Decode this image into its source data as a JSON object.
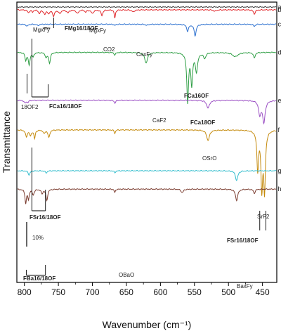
{
  "chart_data": {
    "type": "line",
    "xlabel": "Wavenumber (cm⁻¹)",
    "ylabel": "Transmittance",
    "xlim": [
      810,
      430
    ],
    "x_reversed": true,
    "xticks": [
      800,
      750,
      700,
      650,
      600,
      550,
      500,
      450
    ],
    "y_ticks_shown": false,
    "grid": false,
    "scale_bar": {
      "label": "10%",
      "value_percent": 10
    },
    "series": [
      {
        "name": "a",
        "color": "#3a3a3a",
        "baseline": 0.0,
        "bands": []
      },
      {
        "name": "b",
        "color": "#e0262a",
        "baseline": -4.0,
        "bands": [
          {
            "x": 794,
            "depth": 4,
            "width": 1.5
          },
          {
            "x": 788,
            "depth": 3,
            "width": 1.2
          },
          {
            "x": 778,
            "depth": 5,
            "width": 1.5
          },
          {
            "x": 770,
            "depth": 6,
            "width": 1.8
          },
          {
            "x": 764,
            "depth": 5,
            "width": 1.5
          },
          {
            "x": 757,
            "depth": 9,
            "width": 1.5
          },
          {
            "x": 748,
            "depth": 5,
            "width": 2
          },
          {
            "x": 736,
            "depth": 4,
            "width": 2
          },
          {
            "x": 722,
            "depth": 5,
            "width": 2
          },
          {
            "x": 710,
            "depth": 3,
            "width": 1.5
          },
          {
            "x": 700,
            "depth": 5,
            "width": 2
          },
          {
            "x": 686,
            "depth": 8,
            "width": 1.5
          },
          {
            "x": 667,
            "depth": 12,
            "width": 1.0
          },
          {
            "x": 640,
            "depth": 3,
            "width": 2
          },
          {
            "x": 520,
            "depth": 2,
            "width": 2
          },
          {
            "x": 462,
            "depth": 6,
            "width": 1.5
          }
        ]
      },
      {
        "name": "c",
        "color": "#2a6fcf",
        "baseline": -24.5,
        "bands": [
          {
            "x": 796,
            "depth": 3,
            "width": 1.5
          },
          {
            "x": 780,
            "depth": 2,
            "width": 1.5
          },
          {
            "x": 667,
            "depth": 2,
            "width": 1.0
          },
          {
            "x": 620,
            "depth": 1.5,
            "width": 2
          },
          {
            "x": 560,
            "depth": 10,
            "width": 1.6
          },
          {
            "x": 549,
            "depth": 16,
            "width": 1.8
          },
          {
            "x": 462,
            "depth": 3,
            "width": 1.5
          }
        ]
      },
      {
        "name": "d",
        "color": "#2e9e44",
        "baseline": -64.5,
        "bands": [
          {
            "x": 798,
            "depth": 11,
            "width": 1.2
          },
          {
            "x": 793,
            "depth": 18,
            "width": 1.5
          },
          {
            "x": 787,
            "depth": 6,
            "width": 1.2
          },
          {
            "x": 768,
            "depth": 7,
            "width": 1.5
          },
          {
            "x": 763,
            "depth": 15,
            "width": 1.5
          },
          {
            "x": 667,
            "depth": 4,
            "width": 1.2
          },
          {
            "x": 621,
            "depth": 15,
            "width": 2.5
          },
          {
            "x": 560,
            "depth": 70,
            "width": 1.5
          },
          {
            "x": 554,
            "depth": 44,
            "width": 1.5
          },
          {
            "x": 547,
            "depth": 26,
            "width": 2
          },
          {
            "x": 535,
            "depth": 8,
            "width": 2
          },
          {
            "x": 490,
            "depth": 6,
            "width": 5
          },
          {
            "x": 462,
            "depth": 8,
            "width": 1.5
          }
        ]
      },
      {
        "name": "e",
        "color": "#9b4fc4",
        "baseline": -132.8,
        "bands": [
          {
            "x": 799,
            "depth": 4,
            "width": 1.5
          },
          {
            "x": 795,
            "depth": 3,
            "width": 1.2
          },
          {
            "x": 667,
            "depth": 4,
            "width": 1.2
          },
          {
            "x": 530,
            "depth": 11,
            "width": 2.5
          },
          {
            "x": 454,
            "depth": 20,
            "width": 2
          },
          {
            "x": 448,
            "depth": 31,
            "width": 2.2
          }
        ]
      },
      {
        "name": "f",
        "color": "#c48a0c",
        "baseline": -174.9,
        "bands": [
          {
            "x": 797,
            "depth": 10,
            "width": 1.5
          },
          {
            "x": 791,
            "depth": 8,
            "width": 1.5
          },
          {
            "x": 785,
            "depth": 12,
            "width": 1.2
          },
          {
            "x": 771,
            "depth": 5,
            "width": 1.5
          },
          {
            "x": 764,
            "depth": 11,
            "width": 1.5
          },
          {
            "x": 667,
            "depth": 5,
            "width": 1.0
          },
          {
            "x": 530,
            "depth": 15,
            "width": 2.5
          },
          {
            "x": 457,
            "depth": 55,
            "width": 1.5
          },
          {
            "x": 451,
            "depth": 80,
            "width": 1.5
          },
          {
            "x": 447,
            "depth": 85,
            "width": 1.5
          }
        ]
      },
      {
        "name": "g",
        "color": "#30bccc",
        "baseline": -233.1,
        "bands": [
          {
            "x": 793,
            "depth": 6,
            "width": 1.5
          },
          {
            "x": 768,
            "depth": 3,
            "width": 1.5
          },
          {
            "x": 667,
            "depth": 3,
            "width": 1.0
          },
          {
            "x": 488,
            "depth": 14,
            "width": 2
          }
        ]
      },
      {
        "name": "h",
        "color": "#7a3b2e",
        "baseline": -259.2,
        "bands": [
          {
            "x": 798,
            "depth": 20,
            "width": 1.2
          },
          {
            "x": 794,
            "depth": 14,
            "width": 1.2
          },
          {
            "x": 787,
            "depth": 8,
            "width": 1.5
          },
          {
            "x": 774,
            "depth": 6,
            "width": 1.5
          },
          {
            "x": 767,
            "depth": 16,
            "width": 1.5
          },
          {
            "x": 667,
            "depth": 5,
            "width": 1.0
          },
          {
            "x": 568,
            "depth": 5,
            "width": 2
          },
          {
            "x": 488,
            "depth": 16,
            "width": 2
          },
          {
            "x": 462,
            "depth": 6,
            "width": 1.5
          }
        ]
      }
    ],
    "annotations": {
      "mgxfy_left": "MgxFy",
      "fmg": "FMg16/18OF",
      "mgxfy_right": "MgxFy",
      "co2": "CO2",
      "caxfy": "CaxFy",
      "fca_c": "FCa16OF",
      "of2": "18OF2",
      "fca_d_left": "FCa16/18OF",
      "caf2": "CaF2",
      "fca_d_right": "FCa18OF",
      "osro": "OSrO",
      "fsr_left": "FSr16/18OF",
      "fsr_right": "FSr16/18OF",
      "srf2": "SrF2",
      "obao": "OBaO",
      "fba": "FBa16/18OF",
      "baxfy": "BaxFy"
    }
  }
}
